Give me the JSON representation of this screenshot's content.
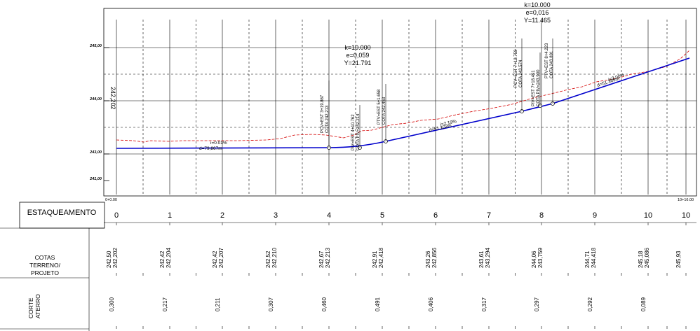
{
  "elevation_labels": [
    "245,00",
    "244,00",
    "243,00",
    "241,00"
  ],
  "start_elevation": "242,202",
  "chainage_start": "0+0.00",
  "chainage_end": "10+16.00",
  "slopes": [
    {
      "grade": "i=0.01%",
      "length": "d=79,867m"
    },
    {
      "grade": "i=2.19%",
      "length": "d=51.103m"
    },
    {
      "grade": "i=3.00%",
      "length": "d=51.365m"
    }
  ],
  "curves": [
    {
      "k": "k=10.000",
      "e": "e=0,059",
      "y": "Y=21.791"
    },
    {
      "k": "k=10.000",
      "e": "e=0,016",
      "y": "Y=11.465"
    }
  ],
  "pi_labels": [
    {
      "text": "PCV=EST 3+19.867",
      "cota": "COTA 242,213"
    },
    {
      "text": "PIV=EST 4+10.762",
      "cota": "COTA PIV=242.214"
    },
    {
      "text": "PTV=EST 5+1.658",
      "cota": "COTA 242.453"
    },
    {
      "text": "PCV=EST 7+12.759",
      "cota": "COTA 243.574"
    },
    {
      "text": "PIV=EST 7+18.491",
      "cota": "COTA PIV=243.900"
    },
    {
      "text": "PTV=EST 8+4.223",
      "cota": "COTA 243.891"
    }
  ],
  "row_titles": {
    "estaqueamento": "ESTAQUEAMENTO",
    "cotas": [
      "COTAS",
      "TERRENO/",
      "PROJETO"
    ],
    "corte": [
      "CORTE",
      "ATERRO"
    ]
  },
  "stations": [
    "0",
    "1",
    "2",
    "3",
    "4",
    "5",
    "6",
    "7",
    "8",
    "9",
    "10",
    "10"
  ],
  "terreno": [
    "242,50",
    "242,42",
    "242,42",
    "242,52",
    "242,67",
    "242,91",
    "243,26",
    "243,61",
    "244,06",
    "244,71",
    "245,18",
    "245,93"
  ],
  "projeto": [
    "242,202",
    "242,204",
    "242,207",
    "242,210",
    "242,213",
    "242,418",
    "242,856",
    "243,294",
    "243,759",
    "244,418",
    "245,086",
    ""
  ],
  "corte_aterro": [
    "0,300",
    "0,217",
    "0,211",
    "0,307",
    "0,460",
    "0,491",
    "0,406",
    "0,317",
    "0,297",
    "0,292",
    "0,089",
    ""
  ],
  "colors": {
    "terrain": "#d40000",
    "design": "#0000cc",
    "grid": "#000000"
  }
}
